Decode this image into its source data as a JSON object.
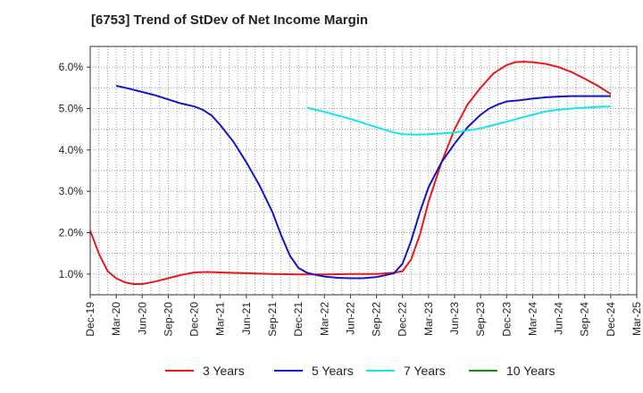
{
  "chart_data": {
    "type": "line",
    "title": "[6753]  Trend of StDev of Net Income Margin",
    "xlabel": "",
    "ylabel": "",
    "ylim": [
      0.5,
      6.5
    ],
    "y_ticks": [
      "1.0%",
      "2.0%",
      "3.0%",
      "4.0%",
      "5.0%",
      "6.0%"
    ],
    "x_ticks": [
      "Dec-19",
      "Mar-20",
      "Jun-20",
      "Sep-20",
      "Dec-20",
      "Mar-21",
      "Jun-21",
      "Sep-21",
      "Dec-21",
      "Mar-22",
      "Jun-22",
      "Sep-22",
      "Dec-22",
      "Mar-23",
      "Jun-23",
      "Sep-23",
      "Dec-23",
      "Mar-24",
      "Jun-24",
      "Sep-24",
      "Dec-24",
      "Mar-25"
    ],
    "grid": true,
    "legend_position": "bottom",
    "series": [
      {
        "name": "3 Years",
        "color": "#e8191a",
        "points": [
          [
            0,
            2.05
          ],
          [
            0.33,
            1.5
          ],
          [
            0.67,
            1.07
          ],
          [
            1,
            0.9
          ],
          [
            1.33,
            0.8
          ],
          [
            1.67,
            0.76
          ],
          [
            2,
            0.76
          ],
          [
            2.5,
            0.82
          ],
          [
            3,
            0.9
          ],
          [
            3.5,
            0.98
          ],
          [
            4,
            1.04
          ],
          [
            4.5,
            1.05
          ],
          [
            5,
            1.04
          ],
          [
            6,
            1.02
          ],
          [
            7,
            1.0
          ],
          [
            8,
            0.99
          ],
          [
            9,
            0.99
          ],
          [
            10,
            1.0
          ],
          [
            11,
            1.0
          ],
          [
            11.67,
            1.03
          ],
          [
            12,
            1.07
          ],
          [
            12.33,
            1.35
          ],
          [
            12.67,
            1.95
          ],
          [
            13,
            2.75
          ],
          [
            13.5,
            3.7
          ],
          [
            14,
            4.5
          ],
          [
            14.5,
            5.1
          ],
          [
            15,
            5.5
          ],
          [
            15.5,
            5.85
          ],
          [
            16,
            6.05
          ],
          [
            16.33,
            6.12
          ],
          [
            16.67,
            6.13
          ],
          [
            17,
            6.12
          ],
          [
            17.5,
            6.08
          ],
          [
            18,
            6.0
          ],
          [
            18.5,
            5.88
          ],
          [
            19,
            5.72
          ],
          [
            19.5,
            5.55
          ],
          [
            20,
            5.35
          ]
        ]
      },
      {
        "name": "5 Years",
        "color": "#1414c8",
        "points": [
          [
            1,
            5.55
          ],
          [
            1.5,
            5.48
          ],
          [
            2,
            5.4
          ],
          [
            2.5,
            5.32
          ],
          [
            3,
            5.22
          ],
          [
            3.5,
            5.12
          ],
          [
            4,
            5.05
          ],
          [
            4.33,
            4.97
          ],
          [
            4.67,
            4.83
          ],
          [
            5,
            4.6
          ],
          [
            5.5,
            4.2
          ],
          [
            6,
            3.7
          ],
          [
            6.5,
            3.15
          ],
          [
            7,
            2.5
          ],
          [
            7.33,
            1.95
          ],
          [
            7.67,
            1.45
          ],
          [
            8,
            1.15
          ],
          [
            8.33,
            1.03
          ],
          [
            8.67,
            0.98
          ],
          [
            9,
            0.94
          ],
          [
            9.5,
            0.91
          ],
          [
            10,
            0.9
          ],
          [
            10.5,
            0.9
          ],
          [
            11,
            0.93
          ],
          [
            11.33,
            0.97
          ],
          [
            11.67,
            1.02
          ],
          [
            12,
            1.25
          ],
          [
            12.33,
            1.8
          ],
          [
            12.67,
            2.5
          ],
          [
            13,
            3.1
          ],
          [
            13.5,
            3.7
          ],
          [
            14,
            4.15
          ],
          [
            14.5,
            4.55
          ],
          [
            15,
            4.85
          ],
          [
            15.33,
            5.0
          ],
          [
            15.67,
            5.1
          ],
          [
            16,
            5.17
          ],
          [
            16.5,
            5.2
          ],
          [
            17,
            5.24
          ],
          [
            17.5,
            5.27
          ],
          [
            18,
            5.29
          ],
          [
            18.5,
            5.3
          ],
          [
            19,
            5.3
          ],
          [
            19.5,
            5.3
          ],
          [
            20,
            5.3
          ]
        ]
      },
      {
        "name": "7 Years",
        "color": "#14e6e6",
        "points": [
          [
            8.33,
            5.02
          ],
          [
            9,
            4.92
          ],
          [
            10,
            4.75
          ],
          [
            11,
            4.55
          ],
          [
            11.67,
            4.42
          ],
          [
            12,
            4.38
          ],
          [
            12.5,
            4.37
          ],
          [
            13,
            4.38
          ],
          [
            14,
            4.42
          ],
          [
            14.5,
            4.47
          ],
          [
            15,
            4.52
          ],
          [
            15.5,
            4.6
          ],
          [
            16,
            4.68
          ],
          [
            16.5,
            4.77
          ],
          [
            17,
            4.85
          ],
          [
            17.5,
            4.93
          ],
          [
            18,
            4.97
          ],
          [
            18.5,
            5.0
          ],
          [
            19,
            5.02
          ],
          [
            19.5,
            5.04
          ],
          [
            20,
            5.05
          ]
        ]
      },
      {
        "name": "10 Years",
        "color": "#148c14",
        "points": []
      }
    ]
  }
}
